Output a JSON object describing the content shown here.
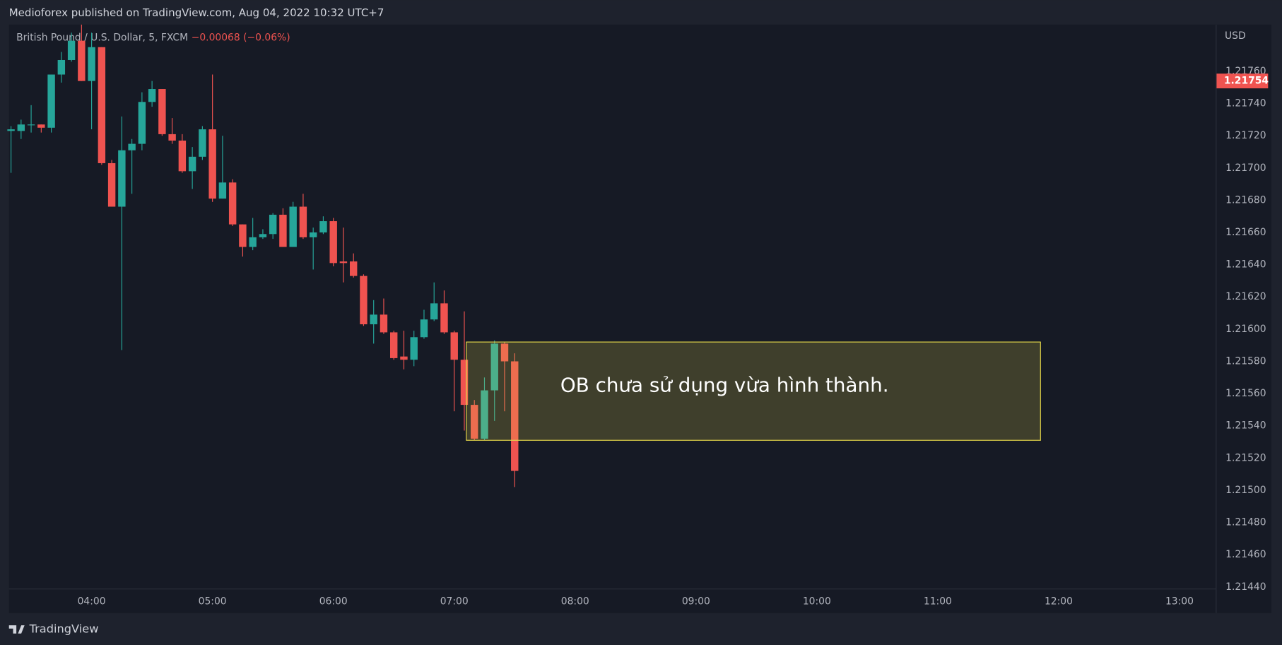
{
  "header": {
    "text": "Medioforex published on TradingView.com, Aug 04, 2022 10:32 UTC+7"
  },
  "footer": {
    "brand": "TradingView"
  },
  "chart_data": {
    "type": "candlestick",
    "title": "British Pound / U.S. Dollar, 5, FXCM",
    "change": "−0.00068 (−0.06%)",
    "currency": "USD",
    "up_color": "#26a69a",
    "down_color": "#ef5350",
    "grid": false,
    "x": [
      "03:20",
      "03:25",
      "03:30",
      "03:35",
      "03:40",
      "03:45",
      "03:50",
      "03:55",
      "04:00",
      "04:05",
      "04:10",
      "04:15",
      "04:20",
      "04:25",
      "04:30",
      "04:35",
      "04:40",
      "04:45",
      "04:50",
      "04:55",
      "05:00",
      "05:05",
      "05:10",
      "05:15",
      "05:20",
      "05:25",
      "05:30",
      "05:35",
      "05:40",
      "05:45",
      "05:50",
      "05:55",
      "06:00",
      "06:05",
      "06:10",
      "06:15",
      "06:20",
      "06:25",
      "06:30",
      "06:35",
      "06:40",
      "06:45",
      "06:50",
      "06:55",
      "07:00",
      "07:05",
      "07:10",
      "07:15",
      "07:20",
      "07:25",
      "07:30"
    ],
    "open": [
      1.21723,
      1.21723,
      1.21727,
      1.21727,
      1.21725,
      1.21758,
      1.21767,
      1.21779,
      1.21754,
      1.21775,
      1.21703,
      1.21676,
      1.21711,
      1.21715,
      1.21741,
      1.21749,
      1.21721,
      1.21717,
      1.21698,
      1.21707,
      1.21724,
      1.21681,
      1.21691,
      1.21665,
      1.21651,
      1.21657,
      1.21659,
      1.21671,
      1.21651,
      1.21676,
      1.21657,
      1.2166,
      1.21667,
      1.21642,
      1.21642,
      1.21633,
      1.21603,
      1.21609,
      1.21598,
      1.21583,
      1.21581,
      1.21595,
      1.21606,
      1.21616,
      1.21598,
      1.21581,
      1.21553,
      1.21532,
      1.21562,
      1.21591,
      1.2158
    ],
    "high": [
      1.21726,
      1.2173,
      1.21739,
      1.21727,
      1.21758,
      1.21772,
      1.21784,
      1.21789,
      1.21784,
      1.21775,
      1.21705,
      1.21732,
      1.21718,
      1.21747,
      1.21754,
      1.21749,
      1.21731,
      1.21721,
      1.21713,
      1.21726,
      1.21758,
      1.2172,
      1.21693,
      1.21665,
      1.21669,
      1.21662,
      1.21672,
      1.21675,
      1.21679,
      1.21684,
      1.21663,
      1.2167,
      1.21669,
      1.21663,
      1.21647,
      1.21634,
      1.21618,
      1.21619,
      1.21599,
      1.21599,
      1.21599,
      1.21612,
      1.21629,
      1.21624,
      1.21599,
      1.21611,
      1.21556,
      1.2157,
      1.21593,
      1.21592,
      1.21585
    ],
    "low": [
      1.21697,
      1.21718,
      1.21722,
      1.21722,
      1.21722,
      1.21753,
      1.21766,
      1.21754,
      1.21724,
      1.21702,
      1.21676,
      1.21587,
      1.21684,
      1.21711,
      1.21738,
      1.2172,
      1.21715,
      1.21697,
      1.21687,
      1.21705,
      1.21679,
      1.21681,
      1.21664,
      1.21645,
      1.21649,
      1.21656,
      1.21656,
      1.21651,
      1.21651,
      1.21656,
      1.21637,
      1.21659,
      1.21639,
      1.21629,
      1.21632,
      1.21602,
      1.21591,
      1.21597,
      1.21581,
      1.21575,
      1.21577,
      1.21594,
      1.21605,
      1.21597,
      1.21549,
      1.21537,
      1.21531,
      1.21531,
      1.21543,
      1.21549,
      1.21502
    ],
    "close": [
      1.21724,
      1.21727,
      1.21727,
      1.21725,
      1.21758,
      1.21767,
      1.21779,
      1.21754,
      1.21775,
      1.21703,
      1.21676,
      1.21711,
      1.21715,
      1.21741,
      1.21749,
      1.21721,
      1.21717,
      1.21698,
      1.21707,
      1.21724,
      1.21681,
      1.21691,
      1.21665,
      1.21651,
      1.21657,
      1.21659,
      1.21671,
      1.21651,
      1.21676,
      1.21657,
      1.2166,
      1.21667,
      1.21641,
      1.21641,
      1.21633,
      1.21603,
      1.21609,
      1.21598,
      1.21582,
      1.21581,
      1.21595,
      1.21606,
      1.21616,
      1.21598,
      1.21581,
      1.21553,
      1.21532,
      1.21562,
      1.21591,
      1.2158,
      1.21512
    ],
    "xlim": [
      "03:19",
      "13:18"
    ],
    "xticks": [
      "04:00",
      "05:00",
      "06:00",
      "07:00",
      "08:00",
      "09:00",
      "10:00",
      "11:00",
      "12:00",
      "13:00"
    ],
    "ylim": [
      1.21439,
      1.21789
    ],
    "yticks": [
      {
        "value": 1.2176,
        "label": "1.21760"
      },
      {
        "value": 1.2174,
        "label": "1.21740"
      },
      {
        "value": 1.2172,
        "label": "1.21720"
      },
      {
        "value": 1.217,
        "label": "1.21700"
      },
      {
        "value": 1.2168,
        "label": "1.21680"
      },
      {
        "value": 1.2166,
        "label": "1.21660"
      },
      {
        "value": 1.2164,
        "label": "1.21640"
      },
      {
        "value": 1.2162,
        "label": "1.21620"
      },
      {
        "value": 1.216,
        "label": "1.21600"
      },
      {
        "value": 1.2158,
        "label": "1.21580"
      },
      {
        "value": 1.2156,
        "label": "1.21560"
      },
      {
        "value": 1.2154,
        "label": "1.21540"
      },
      {
        "value": 1.2152,
        "label": "1.21520"
      },
      {
        "value": 1.215,
        "label": "1.21500"
      },
      {
        "value": 1.2148,
        "label": "1.21480"
      },
      {
        "value": 1.2146,
        "label": "1.21460"
      },
      {
        "value": 1.2144,
        "label": "1.21440"
      }
    ],
    "price_marker": 1.21754,
    "box": {
      "x": [
        "07:06",
        "11:51"
      ],
      "y": [
        1.21592,
        1.21531
      ],
      "color": "#e6d84a",
      "text": "OB chưa sử dụng vừa hình thành."
    }
  }
}
